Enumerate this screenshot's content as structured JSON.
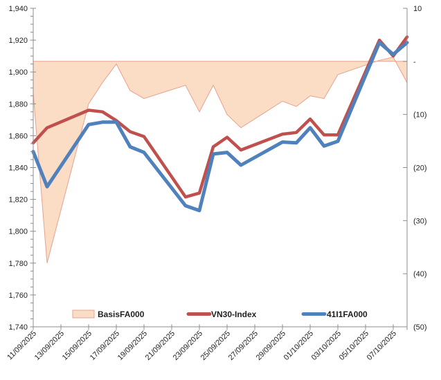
{
  "chart_data": {
    "type": "combo-area-line",
    "x_kind": "date-axis",
    "x": [
      "11/09/2025",
      "12/09/2025",
      "15/09/2025",
      "16/09/2025",
      "17/09/2025",
      "18/09/2025",
      "19/09/2025",
      "22/09/2025",
      "23/09/2025",
      "24/09/2025",
      "25/09/2025",
      "26/09/2025",
      "29/09/2025",
      "30/09/2025",
      "01/10/2025",
      "02/10/2025",
      "03/10/2025",
      "06/10/2025",
      "07/10/2025",
      "08/10/2025"
    ],
    "x_day_offsets": [
      0,
      1,
      4,
      5,
      6,
      7,
      8,
      11,
      12,
      13,
      14,
      15,
      18,
      19,
      20,
      21,
      22,
      25,
      26,
      27
    ],
    "x_axis_span_days": 27,
    "x_tick_labels": [
      "11/09/2025",
      "13/09/2025",
      "15/09/2025",
      "17/09/2025",
      "19/09/2025",
      "21/09/2025",
      "23/09/2025",
      "25/09/2025",
      "27/09/2025",
      "29/09/2025",
      "01/10/2025",
      "03/10/2025",
      "05/10/2025",
      "07/10/2025"
    ],
    "x_tick_day_offsets": [
      0,
      2,
      4,
      6,
      8,
      10,
      12,
      14,
      16,
      18,
      20,
      22,
      24,
      26
    ],
    "series": [
      {
        "name": "BasisFA000",
        "chart_type": "area",
        "axis": "right",
        "fill": "#FBDCC5",
        "stroke": "#E8A18F",
        "values": [
          -6,
          -38,
          -8,
          -4,
          -0.5,
          -5.5,
          -7,
          -4.5,
          -9.5,
          -4.5,
          -10,
          -12.5,
          -7.5,
          -8.5,
          -6.5,
          -7,
          -2.5,
          0.2,
          0.8,
          -4
        ]
      },
      {
        "name": "VN30-Index",
        "chart_type": "line",
        "axis": "left",
        "stroke": "#C0504D",
        "values": [
          1855.5,
          1865,
          1876,
          1875,
          1869.5,
          1862.5,
          1859.5,
          1821.5,
          1824,
          1853,
          1859,
          1851,
          1861,
          1862,
          1870.5,
          1860.5,
          1860.5,
          1920,
          1910,
          1922
        ]
      },
      {
        "name": "41I1FA000",
        "chart_type": "line",
        "axis": "left",
        "stroke": "#4F81BD",
        "values": [
          1850,
          1828,
          1867,
          1868.5,
          1868.5,
          1853,
          1849.5,
          1816,
          1813,
          1848.5,
          1849.5,
          1841.5,
          1856,
          1855.5,
          1865,
          1853.5,
          1856.5,
          1918.5,
          1911,
          1918.5
        ]
      }
    ],
    "left_axis": {
      "min": 1740,
      "max": 1940,
      "major_step": 20,
      "minor_step": 5,
      "tick_labels": [
        "1,940",
        "1,920",
        "1,900",
        "1,880",
        "1,860",
        "1,840",
        "1,820",
        "1,800",
        "1,780",
        "1,760",
        "1,740"
      ]
    },
    "right_axis": {
      "min": -50,
      "max": 10,
      "major_step": 10,
      "tick_labels": [
        "10",
        "-",
        "(10)",
        "(20)",
        "(30)",
        "(40)",
        "(50)"
      ]
    },
    "legend": {
      "position": "bottom",
      "entries": [
        "BasisFA000",
        "VN30-Index",
        "41I1FA000"
      ]
    },
    "grid": "off",
    "axis_line_color": "#8C8C8C"
  }
}
